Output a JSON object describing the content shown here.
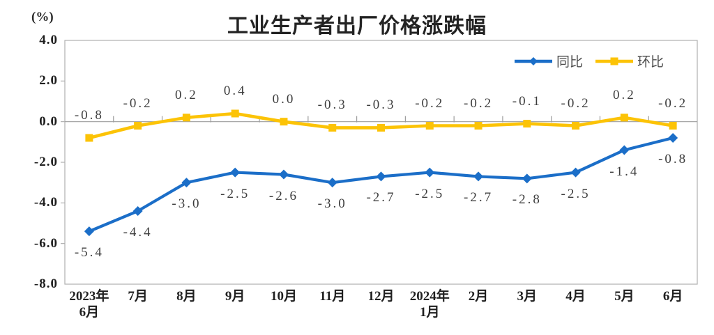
{
  "chart_data": {
    "type": "line",
    "title": "工业生产者出厂价格涨跌幅",
    "unit_label": "(%)",
    "categories": [
      "2023年\n6月",
      "7月",
      "8月",
      "9月",
      "10月",
      "11月",
      "12月",
      "2024年\n1月",
      "2月",
      "3月",
      "4月",
      "5月",
      "6月"
    ],
    "series": [
      {
        "name": "同比",
        "key": "yoy",
        "color": "#1B6EC8",
        "marker": "diamond",
        "values": [
          -5.4,
          -4.4,
          -3.0,
          -2.5,
          -2.6,
          -3.0,
          -2.7,
          -2.5,
          -2.7,
          -2.8,
          -2.5,
          -1.4,
          -0.8
        ],
        "label_offset": 31
      },
      {
        "name": "环比",
        "key": "mom",
        "color": "#FCC306",
        "marker": "square",
        "values": [
          -0.8,
          -0.2,
          0.2,
          0.4,
          0.0,
          -0.3,
          -0.3,
          -0.2,
          -0.2,
          -0.1,
          -0.2,
          0.2,
          -0.2
        ],
        "label_offset": -32
      }
    ],
    "y_ticks": [
      4.0,
      2.0,
      0.0,
      -2.0,
      -4.0,
      -6.0,
      -8.0
    ],
    "ylim": [
      -8.0,
      4.0
    ],
    "grid": false,
    "legend_position": "top-right",
    "axis_color": "#AFAFAF",
    "zero_line_color": "#9C9C9C"
  }
}
